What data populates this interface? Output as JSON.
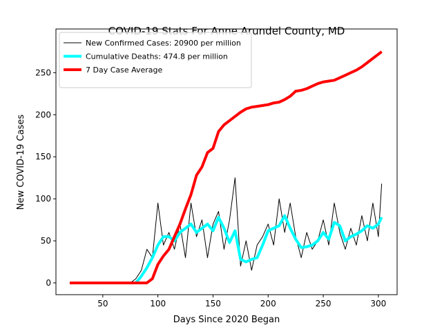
{
  "chart_data": {
    "type": "line",
    "title": "COVID-19 Stats For Anne Arundel County, MD",
    "x_label": "Days Since 2020 Began",
    "y_label": "New COVID-19 Cases",
    "x": [
      20,
      25,
      30,
      35,
      40,
      45,
      50,
      55,
      60,
      65,
      70,
      75,
      80,
      85,
      90,
      95,
      100,
      105,
      110,
      115,
      120,
      125,
      130,
      135,
      140,
      145,
      150,
      155,
      160,
      165,
      170,
      175,
      180,
      185,
      190,
      195,
      200,
      205,
      210,
      215,
      220,
      225,
      230,
      235,
      240,
      245,
      250,
      255,
      260,
      265,
      270,
      275,
      280,
      285,
      290,
      295,
      300,
      303
    ],
    "series": [
      {
        "name": "New Confirmed Cases: 20900 per million",
        "color": "#000000",
        "width": 1,
        "values": [
          0,
          0,
          0,
          0,
          0,
          0,
          0,
          0,
          0,
          0,
          0,
          0,
          5,
          15,
          40,
          30,
          95,
          45,
          60,
          40,
          70,
          30,
          95,
          55,
          75,
          30,
          70,
          85,
          40,
          75,
          125,
          20,
          50,
          15,
          45,
          55,
          70,
          45,
          100,
          60,
          95,
          55,
          30,
          60,
          40,
          50,
          75,
          45,
          95,
          60,
          40,
          65,
          45,
          80,
          50,
          95,
          55,
          118
        ]
      },
      {
        "name": "Cumulative Deaths: 474.8 per million",
        "color": "#00ffff",
        "width": 4,
        "values": [
          0,
          0,
          0,
          0,
          0,
          0,
          0,
          0,
          0,
          0,
          0,
          0,
          0,
          8,
          18,
          30,
          45,
          55,
          55,
          50,
          60,
          65,
          70,
          60,
          65,
          70,
          62,
          78,
          65,
          48,
          62,
          28,
          25,
          28,
          30,
          45,
          62,
          65,
          68,
          80,
          65,
          52,
          42,
          43,
          45,
          50,
          60,
          52,
          72,
          68,
          50,
          55,
          58,
          62,
          68,
          65,
          70,
          78
        ]
      },
      {
        "name": "7 Day Case Average",
        "color": "#ff0000",
        "width": 4,
        "values": [
          0,
          0,
          0,
          0,
          0,
          0,
          0,
          0,
          0,
          0,
          0,
          0,
          0,
          0,
          0,
          5,
          22,
          32,
          40,
          55,
          70,
          88,
          105,
          128,
          138,
          155,
          160,
          180,
          188,
          193,
          198,
          203,
          207,
          209,
          210,
          211,
          212,
          214,
          215,
          218,
          222,
          228,
          229,
          231,
          234,
          237,
          239,
          240,
          241,
          244,
          247,
          250,
          253,
          257,
          262,
          267,
          272,
          275
        ]
      }
    ],
    "xlim": [
      7.5,
      317
    ],
    "ylim": [
      -14,
      302
    ],
    "xticks": [
      50,
      100,
      150,
      200,
      250,
      300
    ],
    "yticks": [
      0,
      50,
      100,
      150,
      200,
      250
    ],
    "legend": "upper left"
  }
}
